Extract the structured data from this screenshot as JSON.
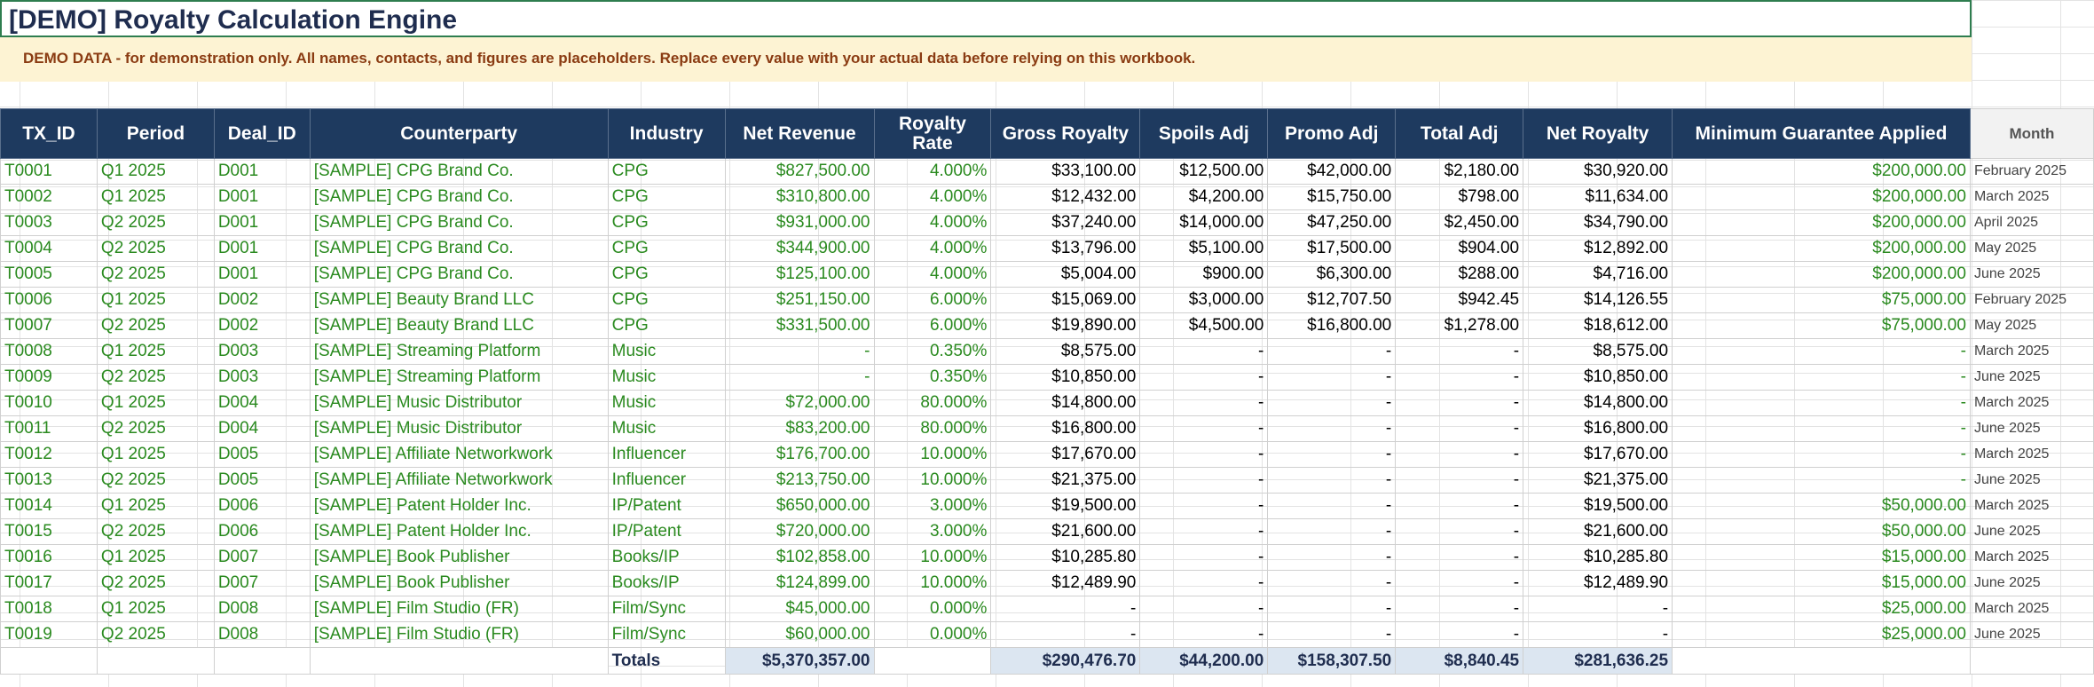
{
  "title": "[DEMO] Royalty Calculation Engine",
  "banner": "DEMO DATA  -  for demonstration only.  All names, contacts, and figures are placeholders. Replace every value with your actual data before relying on this workbook.",
  "headers": {
    "tx_id": "TX_ID",
    "period": "Period",
    "deal_id": "Deal_ID",
    "counterparty": "Counterparty",
    "industry": "Industry",
    "net_revenue": "Net Revenue",
    "royalty_rate_1": "Royalty",
    "royalty_rate_2": "Rate",
    "gross_royalty": "Gross Royalty",
    "spoils_adj": "Spoils Adj",
    "promo_adj": "Promo Adj",
    "total_adj": "Total Adj",
    "net_royalty": "Net Royalty",
    "min_guarantee": "Minimum Guarantee Applied",
    "month": "Month"
  },
  "rows": [
    {
      "tx": "T0001",
      "period": "Q1 2025",
      "deal": "D001",
      "cp": "[SAMPLE] CPG Brand Co.",
      "ind": "CPG",
      "rev": "$827,500.00",
      "rate": "4.000%",
      "gross": "$33,100.00",
      "spoils": "$12,500.00",
      "promo": "$42,000.00",
      "tadj": "$2,180.00",
      "net": "$30,920.00",
      "mg": "$200,000.00",
      "month": "February 2025"
    },
    {
      "tx": "T0002",
      "period": "Q1 2025",
      "deal": "D001",
      "cp": "[SAMPLE] CPG Brand Co.",
      "ind": "CPG",
      "rev": "$310,800.00",
      "rate": "4.000%",
      "gross": "$12,432.00",
      "spoils": "$4,200.00",
      "promo": "$15,750.00",
      "tadj": "$798.00",
      "net": "$11,634.00",
      "mg": "$200,000.00",
      "month": "March 2025"
    },
    {
      "tx": "T0003",
      "period": "Q2 2025",
      "deal": "D001",
      "cp": "[SAMPLE] CPG Brand Co.",
      "ind": "CPG",
      "rev": "$931,000.00",
      "rate": "4.000%",
      "gross": "$37,240.00",
      "spoils": "$14,000.00",
      "promo": "$47,250.00",
      "tadj": "$2,450.00",
      "net": "$34,790.00",
      "mg": "$200,000.00",
      "month": "April 2025"
    },
    {
      "tx": "T0004",
      "period": "Q2 2025",
      "deal": "D001",
      "cp": "[SAMPLE] CPG Brand Co.",
      "ind": "CPG",
      "rev": "$344,900.00",
      "rate": "4.000%",
      "gross": "$13,796.00",
      "spoils": "$5,100.00",
      "promo": "$17,500.00",
      "tadj": "$904.00",
      "net": "$12,892.00",
      "mg": "$200,000.00",
      "month": "May 2025"
    },
    {
      "tx": "T0005",
      "period": "Q2 2025",
      "deal": "D001",
      "cp": "[SAMPLE] CPG Brand Co.",
      "ind": "CPG",
      "rev": "$125,100.00",
      "rate": "4.000%",
      "gross": "$5,004.00",
      "spoils": "$900.00",
      "promo": "$6,300.00",
      "tadj": "$288.00",
      "net": "$4,716.00",
      "mg": "$200,000.00",
      "month": "June 2025"
    },
    {
      "tx": "T0006",
      "period": "Q1 2025",
      "deal": "D002",
      "cp": "[SAMPLE] Beauty Brand LLC",
      "ind": "CPG",
      "rev": "$251,150.00",
      "rate": "6.000%",
      "gross": "$15,069.00",
      "spoils": "$3,000.00",
      "promo": "$12,707.50",
      "tadj": "$942.45",
      "net": "$14,126.55",
      "mg": "$75,000.00",
      "month": "February 2025"
    },
    {
      "tx": "T0007",
      "period": "Q2 2025",
      "deal": "D002",
      "cp": "[SAMPLE] Beauty Brand LLC",
      "ind": "CPG",
      "rev": "$331,500.00",
      "rate": "6.000%",
      "gross": "$19,890.00",
      "spoils": "$4,500.00",
      "promo": "$16,800.00",
      "tadj": "$1,278.00",
      "net": "$18,612.00",
      "mg": "$75,000.00",
      "month": "May 2025"
    },
    {
      "tx": "T0008",
      "period": "Q1 2025",
      "deal": "D003",
      "cp": "[SAMPLE] Streaming Platform",
      "ind": "Music",
      "rev": "-",
      "rate": "0.350%",
      "gross": "$8,575.00",
      "spoils": "-",
      "promo": "-",
      "tadj": "-",
      "net": "$8,575.00",
      "mg": "-",
      "month": "March 2025"
    },
    {
      "tx": "T0009",
      "period": "Q2 2025",
      "deal": "D003",
      "cp": "[SAMPLE] Streaming Platform",
      "ind": "Music",
      "rev": "-",
      "rate": "0.350%",
      "gross": "$10,850.00",
      "spoils": "-",
      "promo": "-",
      "tadj": "-",
      "net": "$10,850.00",
      "mg": "-",
      "month": "June 2025"
    },
    {
      "tx": "T0010",
      "period": "Q1 2025",
      "deal": "D004",
      "cp": "[SAMPLE] Music Distributor",
      "ind": "Music",
      "rev": "$72,000.00",
      "rate": "80.000%",
      "gross": "$14,800.00",
      "spoils": "-",
      "promo": "-",
      "tadj": "-",
      "net": "$14,800.00",
      "mg": "-",
      "month": "March 2025"
    },
    {
      "tx": "T0011",
      "period": "Q2 2025",
      "deal": "D004",
      "cp": "[SAMPLE] Music Distributor",
      "ind": "Music",
      "rev": "$83,200.00",
      "rate": "80.000%",
      "gross": "$16,800.00",
      "spoils": "-",
      "promo": "-",
      "tadj": "-",
      "net": "$16,800.00",
      "mg": "-",
      "month": "June 2025"
    },
    {
      "tx": "T0012",
      "period": "Q1 2025",
      "deal": "D005",
      "cp": "[SAMPLE] Affiliate Networkwork",
      "ind": "Influencer",
      "rev": "$176,700.00",
      "rate": "10.000%",
      "gross": "$17,670.00",
      "spoils": "-",
      "promo": "-",
      "tadj": "-",
      "net": "$17,670.00",
      "mg": "-",
      "month": "March 2025"
    },
    {
      "tx": "T0013",
      "period": "Q2 2025",
      "deal": "D005",
      "cp": "[SAMPLE] Affiliate Networkwork",
      "ind": "Influencer",
      "rev": "$213,750.00",
      "rate": "10.000%",
      "gross": "$21,375.00",
      "spoils": "-",
      "promo": "-",
      "tadj": "-",
      "net": "$21,375.00",
      "mg": "-",
      "month": "June 2025"
    },
    {
      "tx": "T0014",
      "period": "Q1 2025",
      "deal": "D006",
      "cp": "[SAMPLE] Patent Holder Inc.",
      "ind": "IP/Patent",
      "rev": "$650,000.00",
      "rate": "3.000%",
      "gross": "$19,500.00",
      "spoils": "-",
      "promo": "-",
      "tadj": "-",
      "net": "$19,500.00",
      "mg": "$50,000.00",
      "month": "March 2025"
    },
    {
      "tx": "T0015",
      "period": "Q2 2025",
      "deal": "D006",
      "cp": "[SAMPLE] Patent Holder Inc.",
      "ind": "IP/Patent",
      "rev": "$720,000.00",
      "rate": "3.000%",
      "gross": "$21,600.00",
      "spoils": "-",
      "promo": "-",
      "tadj": "-",
      "net": "$21,600.00",
      "mg": "$50,000.00",
      "month": "June 2025"
    },
    {
      "tx": "T0016",
      "period": "Q1 2025",
      "deal": "D007",
      "cp": "[SAMPLE] Book Publisher",
      "ind": "Books/IP",
      "rev": "$102,858.00",
      "rate": "10.000%",
      "gross": "$10,285.80",
      "spoils": "-",
      "promo": "-",
      "tadj": "-",
      "net": "$10,285.80",
      "mg": "$15,000.00",
      "month": "March 2025"
    },
    {
      "tx": "T0017",
      "period": "Q2 2025",
      "deal": "D007",
      "cp": "[SAMPLE] Book Publisher",
      "ind": "Books/IP",
      "rev": "$124,899.00",
      "rate": "10.000%",
      "gross": "$12,489.90",
      "spoils": "-",
      "promo": "-",
      "tadj": "-",
      "net": "$12,489.90",
      "mg": "$15,000.00",
      "month": "June 2025"
    },
    {
      "tx": "T0018",
      "period": "Q1 2025",
      "deal": "D008",
      "cp": "[SAMPLE] Film Studio (FR)",
      "ind": "Film/Sync",
      "rev": "$45,000.00",
      "rate": "0.000%",
      "gross": "-",
      "spoils": "-",
      "promo": "-",
      "tadj": "-",
      "net": "-",
      "mg": "$25,000.00",
      "month": "March 2025"
    },
    {
      "tx": "T0019",
      "period": "Q2 2025",
      "deal": "D008",
      "cp": "[SAMPLE] Film Studio (FR)",
      "ind": "Film/Sync",
      "rev": "$60,000.00",
      "rate": "0.000%",
      "gross": "-",
      "spoils": "-",
      "promo": "-",
      "tadj": "-",
      "net": "-",
      "mg": "$25,000.00",
      "month": "June 2025"
    }
  ],
  "totals": {
    "label": "Totals",
    "rev": "$5,370,357.00",
    "gross": "$290,476.70",
    "spoils": "$44,200.00",
    "promo": "$158,307.50",
    "tadj": "$8,840.45",
    "net": "$281,636.25"
  }
}
